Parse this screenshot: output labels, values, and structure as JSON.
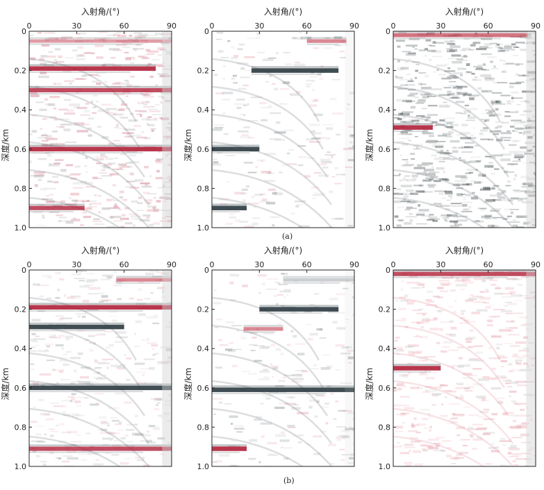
{
  "figure": {
    "captions": [
      "(a)",
      "(b)"
    ]
  },
  "chart_data": [
    {
      "type": "heatmap",
      "row": "a",
      "column": 1,
      "xlabel": "入射角/(°)",
      "ylabel": "深度/km",
      "xlim": [
        0,
        90
      ],
      "ylim": [
        0,
        1.0
      ],
      "xticks": [
        "0",
        "30",
        "60",
        "90"
      ],
      "yticks": [
        "0",
        "0.2",
        "0.4",
        "0.6",
        "0.8",
        "1.0"
      ],
      "reflectors": [
        {
          "depth": 0.05,
          "x_start": 0,
          "x_end": 90,
          "color": "#c23b4f",
          "strength": 0.5
        },
        {
          "depth": 0.19,
          "x_start": 0,
          "x_end": 80,
          "color": "#b0213a",
          "strength": 0.9
        },
        {
          "depth": 0.3,
          "x_start": 0,
          "x_end": 90,
          "color": "#b0213a",
          "strength": 0.8
        },
        {
          "depth": 0.6,
          "x_start": 0,
          "x_end": 90,
          "color": "#b0213a",
          "strength": 0.9
        },
        {
          "depth": 0.9,
          "x_start": 0,
          "x_end": 35,
          "color": "#b0213a",
          "strength": 0.8
        }
      ],
      "noise": "mixed"
    },
    {
      "type": "heatmap",
      "row": "a",
      "column": 2,
      "xlabel": "入射角/(°)",
      "ylabel": "深度/km",
      "xlim": [
        0,
        90
      ],
      "ylim": [
        0,
        1.0
      ],
      "xticks": [
        "0",
        "30",
        "60",
        "90"
      ],
      "yticks": [
        "0",
        "0.2",
        "0.4",
        "0.6",
        "0.8",
        "1.0"
      ],
      "reflectors": [
        {
          "depth": 0.05,
          "x_start": 60,
          "x_end": 85,
          "color": "#c23b4f",
          "strength": 0.6
        },
        {
          "depth": 0.2,
          "x_start": 25,
          "x_end": 80,
          "color": "#2b3a40",
          "strength": 0.9
        },
        {
          "depth": 0.6,
          "x_start": 0,
          "x_end": 30,
          "color": "#2b3a40",
          "strength": 0.9
        },
        {
          "depth": 0.9,
          "x_start": 0,
          "x_end": 22,
          "color": "#2b3a40",
          "strength": 0.9
        }
      ],
      "noise": "sparse"
    },
    {
      "type": "heatmap",
      "row": "a",
      "column": 3,
      "xlabel": "入射角/(°)",
      "ylabel": "深度/km",
      "xlim": [
        0,
        90
      ],
      "ylim": [
        0,
        1.0
      ],
      "xticks": [
        "0",
        "30",
        "60",
        "90"
      ],
      "yticks": [
        "0",
        "0.2",
        "0.4",
        "0.6",
        "0.8",
        "1.0"
      ],
      "reflectors": [
        {
          "depth": 0.02,
          "x_start": 0,
          "x_end": 85,
          "color": "#c23b4f",
          "strength": 0.7
        },
        {
          "depth": 0.49,
          "x_start": 0,
          "x_end": 25,
          "color": "#b0213a",
          "strength": 0.9
        }
      ],
      "noise": "dense_dark"
    },
    {
      "type": "heatmap",
      "row": "b",
      "column": 1,
      "xlabel": "入射角/(°)",
      "ylabel": "深度/km",
      "xlim": [
        0,
        90
      ],
      "ylim": [
        0,
        1.0
      ],
      "xticks": [
        "0",
        "30",
        "60",
        "90"
      ],
      "yticks": [
        "0",
        "0.2",
        "0.4",
        "0.6",
        "0.8",
        "1.0"
      ],
      "reflectors": [
        {
          "depth": 0.05,
          "x_start": 55,
          "x_end": 90,
          "color": "#c23b4f",
          "strength": 0.6
        },
        {
          "depth": 0.19,
          "x_start": 0,
          "x_end": 90,
          "color": "#b0213a",
          "strength": 0.9
        },
        {
          "depth": 0.29,
          "x_start": 0,
          "x_end": 60,
          "color": "#2b3a40",
          "strength": 0.9
        },
        {
          "depth": 0.6,
          "x_start": 0,
          "x_end": 90,
          "color": "#2b3a40",
          "strength": 0.9
        },
        {
          "depth": 0.91,
          "x_start": 0,
          "x_end": 90,
          "color": "#b0213a",
          "strength": 0.8
        }
      ],
      "noise": "light"
    },
    {
      "type": "heatmap",
      "row": "b",
      "column": 2,
      "xlabel": "入射角/(°)",
      "ylabel": "深度/km",
      "xlim": [
        0,
        90
      ],
      "ylim": [
        0,
        1.0
      ],
      "xticks": [
        "0",
        "30",
        "60",
        "90"
      ],
      "yticks": [
        "0",
        "0.2",
        "0.4",
        "0.6",
        "0.8",
        "1.0"
      ],
      "reflectors": [
        {
          "depth": 0.05,
          "x_start": 45,
          "x_end": 90,
          "color": "#9aa0a4",
          "strength": 0.5
        },
        {
          "depth": 0.2,
          "x_start": 30,
          "x_end": 80,
          "color": "#2b3a40",
          "strength": 0.9
        },
        {
          "depth": 0.3,
          "x_start": 20,
          "x_end": 45,
          "color": "#c23b4f",
          "strength": 0.6
        },
        {
          "depth": 0.61,
          "x_start": 0,
          "x_end": 90,
          "color": "#2b3a40",
          "strength": 0.9
        },
        {
          "depth": 0.91,
          "x_start": 0,
          "x_end": 22,
          "color": "#b0213a",
          "strength": 0.9
        }
      ],
      "noise": "sparse"
    },
    {
      "type": "heatmap",
      "row": "b",
      "column": 3,
      "xlabel": "入射角/(°)",
      "ylabel": "深度/km",
      "xlim": [
        0,
        90
      ],
      "ylim": [
        0,
        1.0
      ],
      "xticks": [
        "0",
        "30",
        "60",
        "90"
      ],
      "yticks": [
        "0",
        "0.2",
        "0.4",
        "0.6",
        "0.8",
        "1.0"
      ],
      "reflectors": [
        {
          "depth": 0.02,
          "x_start": 0,
          "x_end": 90,
          "color": "#b0213a",
          "strength": 0.8
        },
        {
          "depth": 0.5,
          "x_start": 0,
          "x_end": 30,
          "color": "#b0213a",
          "strength": 0.9
        }
      ],
      "noise": "pink"
    }
  ]
}
